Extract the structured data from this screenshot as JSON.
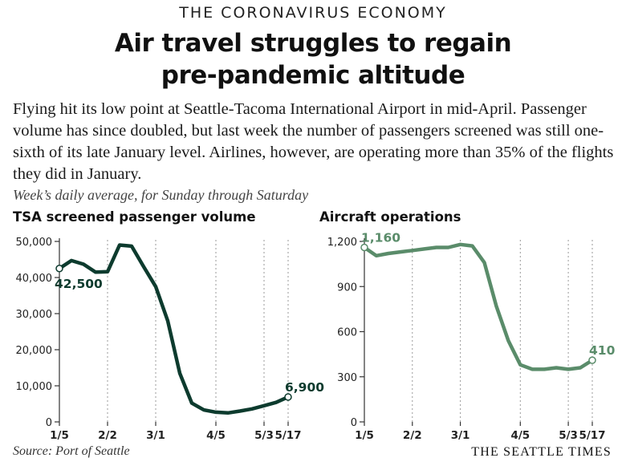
{
  "header": {
    "kicker": "THE CORONAVIRUS ECONOMY",
    "headline_line1": "Air travel struggles to regain",
    "headline_line2": "pre-pandemic altitude",
    "dek": "Flying hit its low point at Seattle-Tacoma International Airport in mid-April. Passenger volume has since doubled, but last week the number of passengers screened was still one-sixth of its late January level. Airlines, however, are operating more than 35% of the flights they did in January.",
    "note": "Week’s daily average, for Sunday through Saturday"
  },
  "footer": {
    "source": "Source: Port of Seattle",
    "brand": "THE SEATTLE TIMES"
  },
  "colors": {
    "tsa_line": "#0d3b2e",
    "ops_line": "#5a8c6a",
    "axis": "#333333",
    "grid": "#9a9a9a"
  },
  "chart_data": [
    {
      "type": "line",
      "title": "TSA screened passenger volume",
      "x_ticks": [
        "1/5",
        "2/2",
        "3/1",
        "4/5",
        "5/3",
        "5/17"
      ],
      "ylim": [
        0,
        50000
      ],
      "y_ticks": [
        0,
        10000,
        20000,
        30000,
        40000,
        50000
      ],
      "y_tick_labels": [
        "0",
        "10,000",
        "20,000",
        "30,000",
        "40,000",
        "50,000"
      ],
      "grid": "vertical dashed at labeled dates",
      "series": [
        {
          "x": [
            "1/5",
            "1/12",
            "1/19",
            "1/26",
            "2/2",
            "2/9",
            "2/16",
            "2/23",
            "3/1",
            "3/8",
            "3/15",
            "3/22",
            "3/29",
            "4/5",
            "4/12",
            "4/19",
            "4/26",
            "5/3",
            "5/10",
            "5/17"
          ],
          "values": [
            42500,
            44700,
            43700,
            41500,
            41600,
            49000,
            48700,
            43000,
            37500,
            28000,
            13500,
            5200,
            3300,
            2700,
            2500,
            3000,
            3600,
            4500,
            5400,
            6900
          ]
        }
      ],
      "annotations": [
        {
          "x": "1/5",
          "label": "42,500"
        },
        {
          "x": "5/17",
          "label": "6,900"
        }
      ]
    },
    {
      "type": "line",
      "title": "Aircraft operations",
      "x_ticks": [
        "1/5",
        "2/2",
        "3/1",
        "4/5",
        "5/3",
        "5/17"
      ],
      "ylim": [
        0,
        1200
      ],
      "y_ticks": [
        0,
        300,
        600,
        900,
        1200
      ],
      "y_tick_labels": [
        "0",
        "300",
        "600",
        "900",
        "1,200"
      ],
      "grid": "vertical dashed at labeled dates",
      "series": [
        {
          "x": [
            "1/5",
            "1/12",
            "1/19",
            "1/26",
            "2/2",
            "2/9",
            "2/16",
            "2/23",
            "3/1",
            "3/8",
            "3/15",
            "3/22",
            "3/29",
            "4/5",
            "4/12",
            "4/19",
            "4/26",
            "5/3",
            "5/10",
            "5/17"
          ],
          "values": [
            1160,
            1105,
            1120,
            1130,
            1140,
            1150,
            1160,
            1160,
            1180,
            1170,
            1060,
            770,
            540,
            380,
            350,
            350,
            360,
            350,
            360,
            410
          ]
        }
      ],
      "annotations": [
        {
          "x": "1/5",
          "label": "1,160"
        },
        {
          "x": "5/17",
          "label": "410"
        }
      ]
    }
  ]
}
